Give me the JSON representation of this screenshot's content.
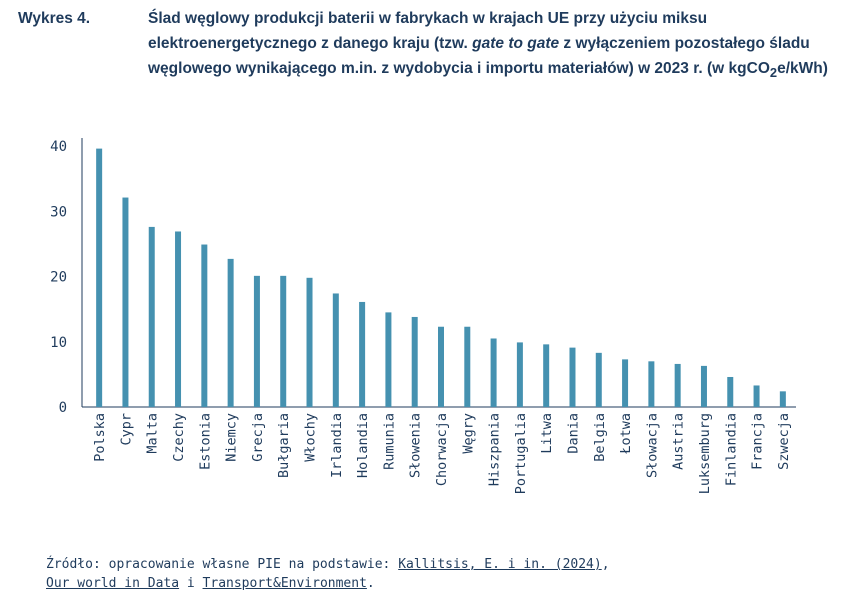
{
  "title": {
    "label": "Wykres 4.",
    "part1": "Ślad węglowy produkcji baterii w fabrykach w krajach UE przy użyciu miksu elektroenergetycznego z danego kraju (tzw. ",
    "italic": "gate to gate",
    "part2": " z wyłączeniem pozostałego śladu węglowego wynikającego m.in. z wydobycia i importu materiałów) w 2023 r. (w kgCO",
    "sub": "2",
    "part3": "e/kWh)"
  },
  "chart_data": {
    "type": "bar",
    "categories": [
      "Polska",
      "Cypr",
      "Malta",
      "Czechy",
      "Estonia",
      "Niemcy",
      "Grecja",
      "Bułgaria",
      "Włochy",
      "Irlandia",
      "Holandia",
      "Rumunia",
      "Słowenia",
      "Chorwacja",
      "Węgry",
      "Hiszpania",
      "Portugalia",
      "Litwa",
      "Dania",
      "Belgia",
      "Łotwa",
      "Słowacja",
      "Austria",
      "Luksemburg",
      "Finlandia",
      "Francja",
      "Szwecja"
    ],
    "values": [
      39.6,
      32.1,
      27.6,
      26.9,
      24.9,
      22.7,
      20.1,
      20.1,
      19.8,
      17.4,
      16.1,
      14.5,
      13.8,
      12.3,
      12.3,
      10.5,
      9.9,
      9.6,
      9.1,
      8.3,
      7.3,
      7.0,
      6.6,
      6.3,
      4.6,
      3.3,
      2.4
    ],
    "ylim": [
      0,
      40
    ],
    "yticks": [
      0,
      10,
      20,
      30,
      40
    ],
    "bar_color": "#4591b0",
    "grid": false
  },
  "source": {
    "prefix": "Źródło: opracowanie własne PIE na podstawie: ",
    "link1": "Kallitsis, E. i in. (2024)",
    "sep1": ",",
    "link2": "Our world in Data",
    "sep2": " i ",
    "link3": "Transport&Environment",
    "suffix": "."
  }
}
